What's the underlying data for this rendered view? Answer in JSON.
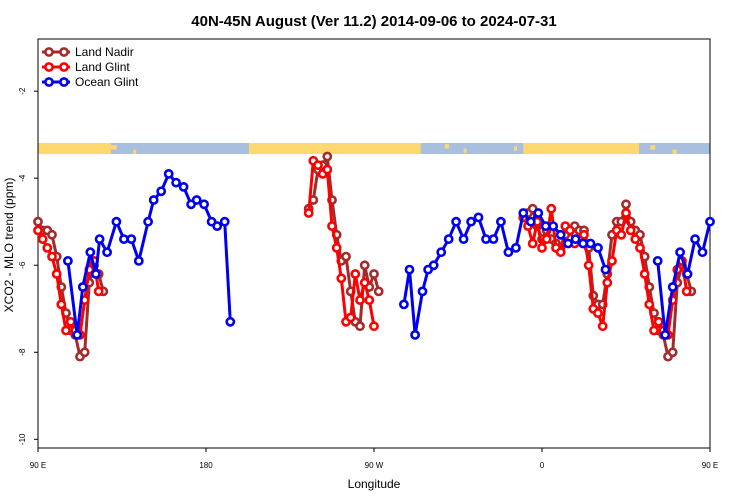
{
  "chart_data": {
    "type": "line",
    "title": "40N-45N August (Ver 11.2)   2014-09-06 to 2024-07-31",
    "xlabel": "Longitude",
    "ylabel": "XCO2 - MLO trend (ppm)",
    "xlim": [
      90,
      450
    ],
    "ylim": [
      -10.2,
      -0.8
    ],
    "x_ticks": [
      {
        "value": 90,
        "label": "90 E"
      },
      {
        "value": 180,
        "label": "180"
      },
      {
        "value": 270,
        "label": "90 W"
      },
      {
        "value": 360,
        "label": "0"
      },
      {
        "value": 450,
        "label": "90 E"
      },
      {
        "value": 540,
        "label": "180"
      }
    ],
    "y_ticks": [
      {
        "value": -2,
        "label": "-2"
      },
      {
        "value": -4,
        "label": "-4"
      },
      {
        "value": -6,
        "label": "-6"
      },
      {
        "value": -8,
        "label": "-8"
      },
      {
        "value": -10,
        "label": "-10"
      }
    ],
    "legend_position": "top-left",
    "land_mask_colors": {
      "land": "#fdd86e",
      "ocean": "#a9bfe0"
    },
    "series": [
      {
        "name": "Land Nadir",
        "color": "#a52a2a",
        "segments": [
          [
            [
              90,
              -5.0
            ],
            [
              92.5,
              -5.2
            ],
            [
              95,
              -5.2
            ],
            [
              97.5,
              -5.3
            ],
            [
              100,
              -5.8
            ],
            [
              102.5,
              -6.5
            ],
            [
              105,
              -7.1
            ],
            [
              107.5,
              -7.5
            ],
            [
              110,
              -7.6
            ],
            [
              112.5,
              -8.1
            ],
            [
              115,
              -8.0
            ],
            [
              117.5,
              -6.4
            ],
            [
              120,
              -6.0
            ],
            [
              122.5,
              -6.2
            ],
            [
              125,
              -6.6
            ]
          ],
          [
            [
              235,
              -4.7
            ],
            [
              237.5,
              -4.5
            ],
            [
              240,
              -3.8
            ],
            [
              242.5,
              -3.7
            ],
            [
              245,
              -3.5
            ],
            [
              247.5,
              -4.5
            ],
            [
              250,
              -5.3
            ],
            [
              252.5,
              -5.9
            ],
            [
              255,
              -5.8
            ],
            [
              257.5,
              -6.6
            ],
            [
              260,
              -7.3
            ],
            [
              262.5,
              -7.4
            ],
            [
              265,
              -6.0
            ],
            [
              267.5,
              -6.5
            ],
            [
              270,
              -6.2
            ],
            [
              272.5,
              -6.6
            ]
          ],
          [
            [
              350,
              -4.9
            ],
            [
              352.5,
              -4.8
            ],
            [
              355,
              -4.7
            ],
            [
              357.5,
              -5.1
            ],
            [
              360,
              -5.4
            ],
            [
              362.5,
              -5.2
            ],
            [
              365,
              -5.4
            ],
            [
              367.5,
              -5.5
            ],
            [
              370,
              -5.6
            ],
            [
              372.5,
              -5.3
            ],
            [
              375,
              -5.2
            ],
            [
              377.5,
              -5.1
            ],
            [
              380,
              -5.2
            ],
            [
              382.5,
              -5.2
            ],
            [
              385,
              -5.6
            ],
            [
              387.5,
              -6.7
            ],
            [
              390,
              -6.9
            ],
            [
              392.5,
              -6.9
            ],
            [
              395,
              -6.2
            ],
            [
              397.5,
              -5.3
            ],
            [
              400,
              -5.0
            ],
            [
              402.5,
              -5.0
            ],
            [
              405,
              -4.6
            ],
            [
              407.5,
              -5.0
            ],
            [
              410,
              -5.2
            ],
            [
              412.5,
              -5.3
            ],
            [
              415,
              -5.8
            ],
            [
              417.5,
              -6.5
            ],
            [
              420,
              -7.1
            ],
            [
              422.5,
              -7.5
            ],
            [
              425,
              -7.6
            ],
            [
              427.5,
              -8.1
            ],
            [
              430,
              -8.0
            ],
            [
              432.5,
              -6.4
            ],
            [
              435,
              -6.0
            ],
            [
              437.5,
              -6.2
            ],
            [
              440,
              -6.6
            ]
          ]
        ]
      },
      {
        "name": "Land Glint",
        "color": "#ff0000",
        "segments": [
          [
            [
              90,
              -5.2
            ],
            [
              92.5,
              -5.4
            ],
            [
              95,
              -5.6
            ],
            [
              97.5,
              -5.8
            ],
            [
              100,
              -6.2
            ],
            [
              102.5,
              -6.9
            ],
            [
              105,
              -7.5
            ],
            [
              107.5,
              -7.3
            ],
            [
              110,
              -7.5
            ],
            [
              112.5,
              -7.6
            ],
            [
              115,
              -6.8
            ],
            [
              117.5,
              -6.1
            ],
            [
              120,
              -5.9
            ],
            [
              122.5,
              -6.6
            ]
          ],
          [
            [
              235,
              -4.8
            ],
            [
              237.5,
              -3.6
            ],
            [
              240,
              -3.7
            ],
            [
              242.5,
              -3.9
            ],
            [
              245,
              -3.8
            ],
            [
              247.5,
              -5.1
            ],
            [
              250,
              -5.6
            ],
            [
              252.5,
              -6.3
            ],
            [
              255,
              -7.3
            ],
            [
              257.5,
              -7.2
            ],
            [
              260,
              -6.2
            ],
            [
              262.5,
              -6.8
            ],
            [
              265,
              -6.4
            ],
            [
              267.5,
              -6.8
            ],
            [
              270,
              -7.4
            ]
          ],
          [
            [
              350,
              -4.9
            ],
            [
              352.5,
              -5.1
            ],
            [
              355,
              -5.5
            ],
            [
              357.5,
              -5.0
            ],
            [
              360,
              -5.6
            ],
            [
              362.5,
              -5.4
            ],
            [
              365,
              -4.7
            ],
            [
              367.5,
              -5.6
            ],
            [
              370,
              -5.7
            ],
            [
              372.5,
              -5.1
            ],
            [
              375,
              -5.2
            ],
            [
              377.5,
              -5.5
            ],
            [
              380,
              -5.4
            ],
            [
              382.5,
              -5.3
            ],
            [
              385,
              -6.0
            ],
            [
              387.5,
              -7.0
            ],
            [
              390,
              -7.1
            ],
            [
              392.5,
              -7.4
            ],
            [
              395,
              -6.4
            ],
            [
              397.5,
              -5.9
            ],
            [
              400,
              -5.2
            ],
            [
              402.5,
              -5.3
            ],
            [
              405,
              -4.8
            ],
            [
              407.5,
              -5.2
            ],
            [
              410,
              -5.4
            ],
            [
              412.5,
              -5.6
            ],
            [
              415,
              -6.2
            ],
            [
              417.5,
              -6.9
            ],
            [
              420,
              -7.5
            ],
            [
              422.5,
              -7.3
            ],
            [
              425,
              -7.5
            ],
            [
              427.5,
              -7.6
            ],
            [
              430,
              -6.8
            ],
            [
              432.5,
              -6.1
            ],
            [
              435,
              -5.9
            ],
            [
              437.5,
              -6.6
            ]
          ]
        ]
      },
      {
        "name": "Ocean Glint",
        "color": "#0000ee",
        "segments": [
          [
            [
              106,
              -5.9
            ],
            [
              111,
              -7.6
            ],
            [
              114,
              -6.5
            ],
            [
              118,
              -5.7
            ],
            [
              121,
              -6.2
            ],
            [
              123,
              -5.4
            ],
            [
              127,
              -5.7
            ],
            [
              132,
              -5.0
            ],
            [
              136,
              -5.4
            ],
            [
              140,
              -5.4
            ],
            [
              144,
              -5.9
            ],
            [
              149,
              -5.0
            ],
            [
              152,
              -4.5
            ],
            [
              156,
              -4.3
            ],
            [
              160,
              -3.9
            ],
            [
              164,
              -4.1
            ],
            [
              168,
              -4.2
            ],
            [
              172,
              -4.6
            ],
            [
              175,
              -4.5
            ],
            [
              179,
              -4.6
            ],
            [
              183,
              -5.0
            ],
            [
              186,
              -5.1
            ],
            [
              190,
              -5.0
            ],
            [
              193,
              -7.3
            ]
          ],
          [
            [
              286,
              -6.9
            ],
            [
              289,
              -6.1
            ],
            [
              292,
              -7.6
            ],
            [
              296,
              -6.6
            ],
            [
              299,
              -6.1
            ],
            [
              302,
              -6.0
            ],
            [
              306,
              -5.7
            ],
            [
              310,
              -5.4
            ],
            [
              314,
              -5.0
            ],
            [
              318,
              -5.4
            ],
            [
              322,
              -5.0
            ],
            [
              326,
              -4.9
            ],
            [
              330,
              -5.4
            ],
            [
              334,
              -5.4
            ],
            [
              338,
              -5.0
            ],
            [
              342,
              -5.7
            ],
            [
              346,
              -5.6
            ],
            [
              350,
              -4.8
            ],
            [
              354,
              -5.0
            ],
            [
              358,
              -4.8
            ],
            [
              362,
              -5.1
            ],
            [
              366,
              -5.1
            ],
            [
              370,
              -5.3
            ],
            [
              374,
              -5.5
            ],
            [
              378,
              -5.4
            ],
            [
              382,
              -5.5
            ],
            [
              386,
              -5.5
            ],
            [
              390,
              -5.6
            ],
            [
              394,
              -6.1
            ]
          ],
          [
            [
              422,
              -5.9
            ],
            [
              426,
              -7.6
            ],
            [
              430,
              -6.5
            ],
            [
              434,
              -5.7
            ],
            [
              438,
              -6.2
            ],
            [
              442,
              -5.4
            ],
            [
              446,
              -5.7
            ],
            [
              450,
              -5.0
            ]
          ]
        ]
      }
    ]
  }
}
